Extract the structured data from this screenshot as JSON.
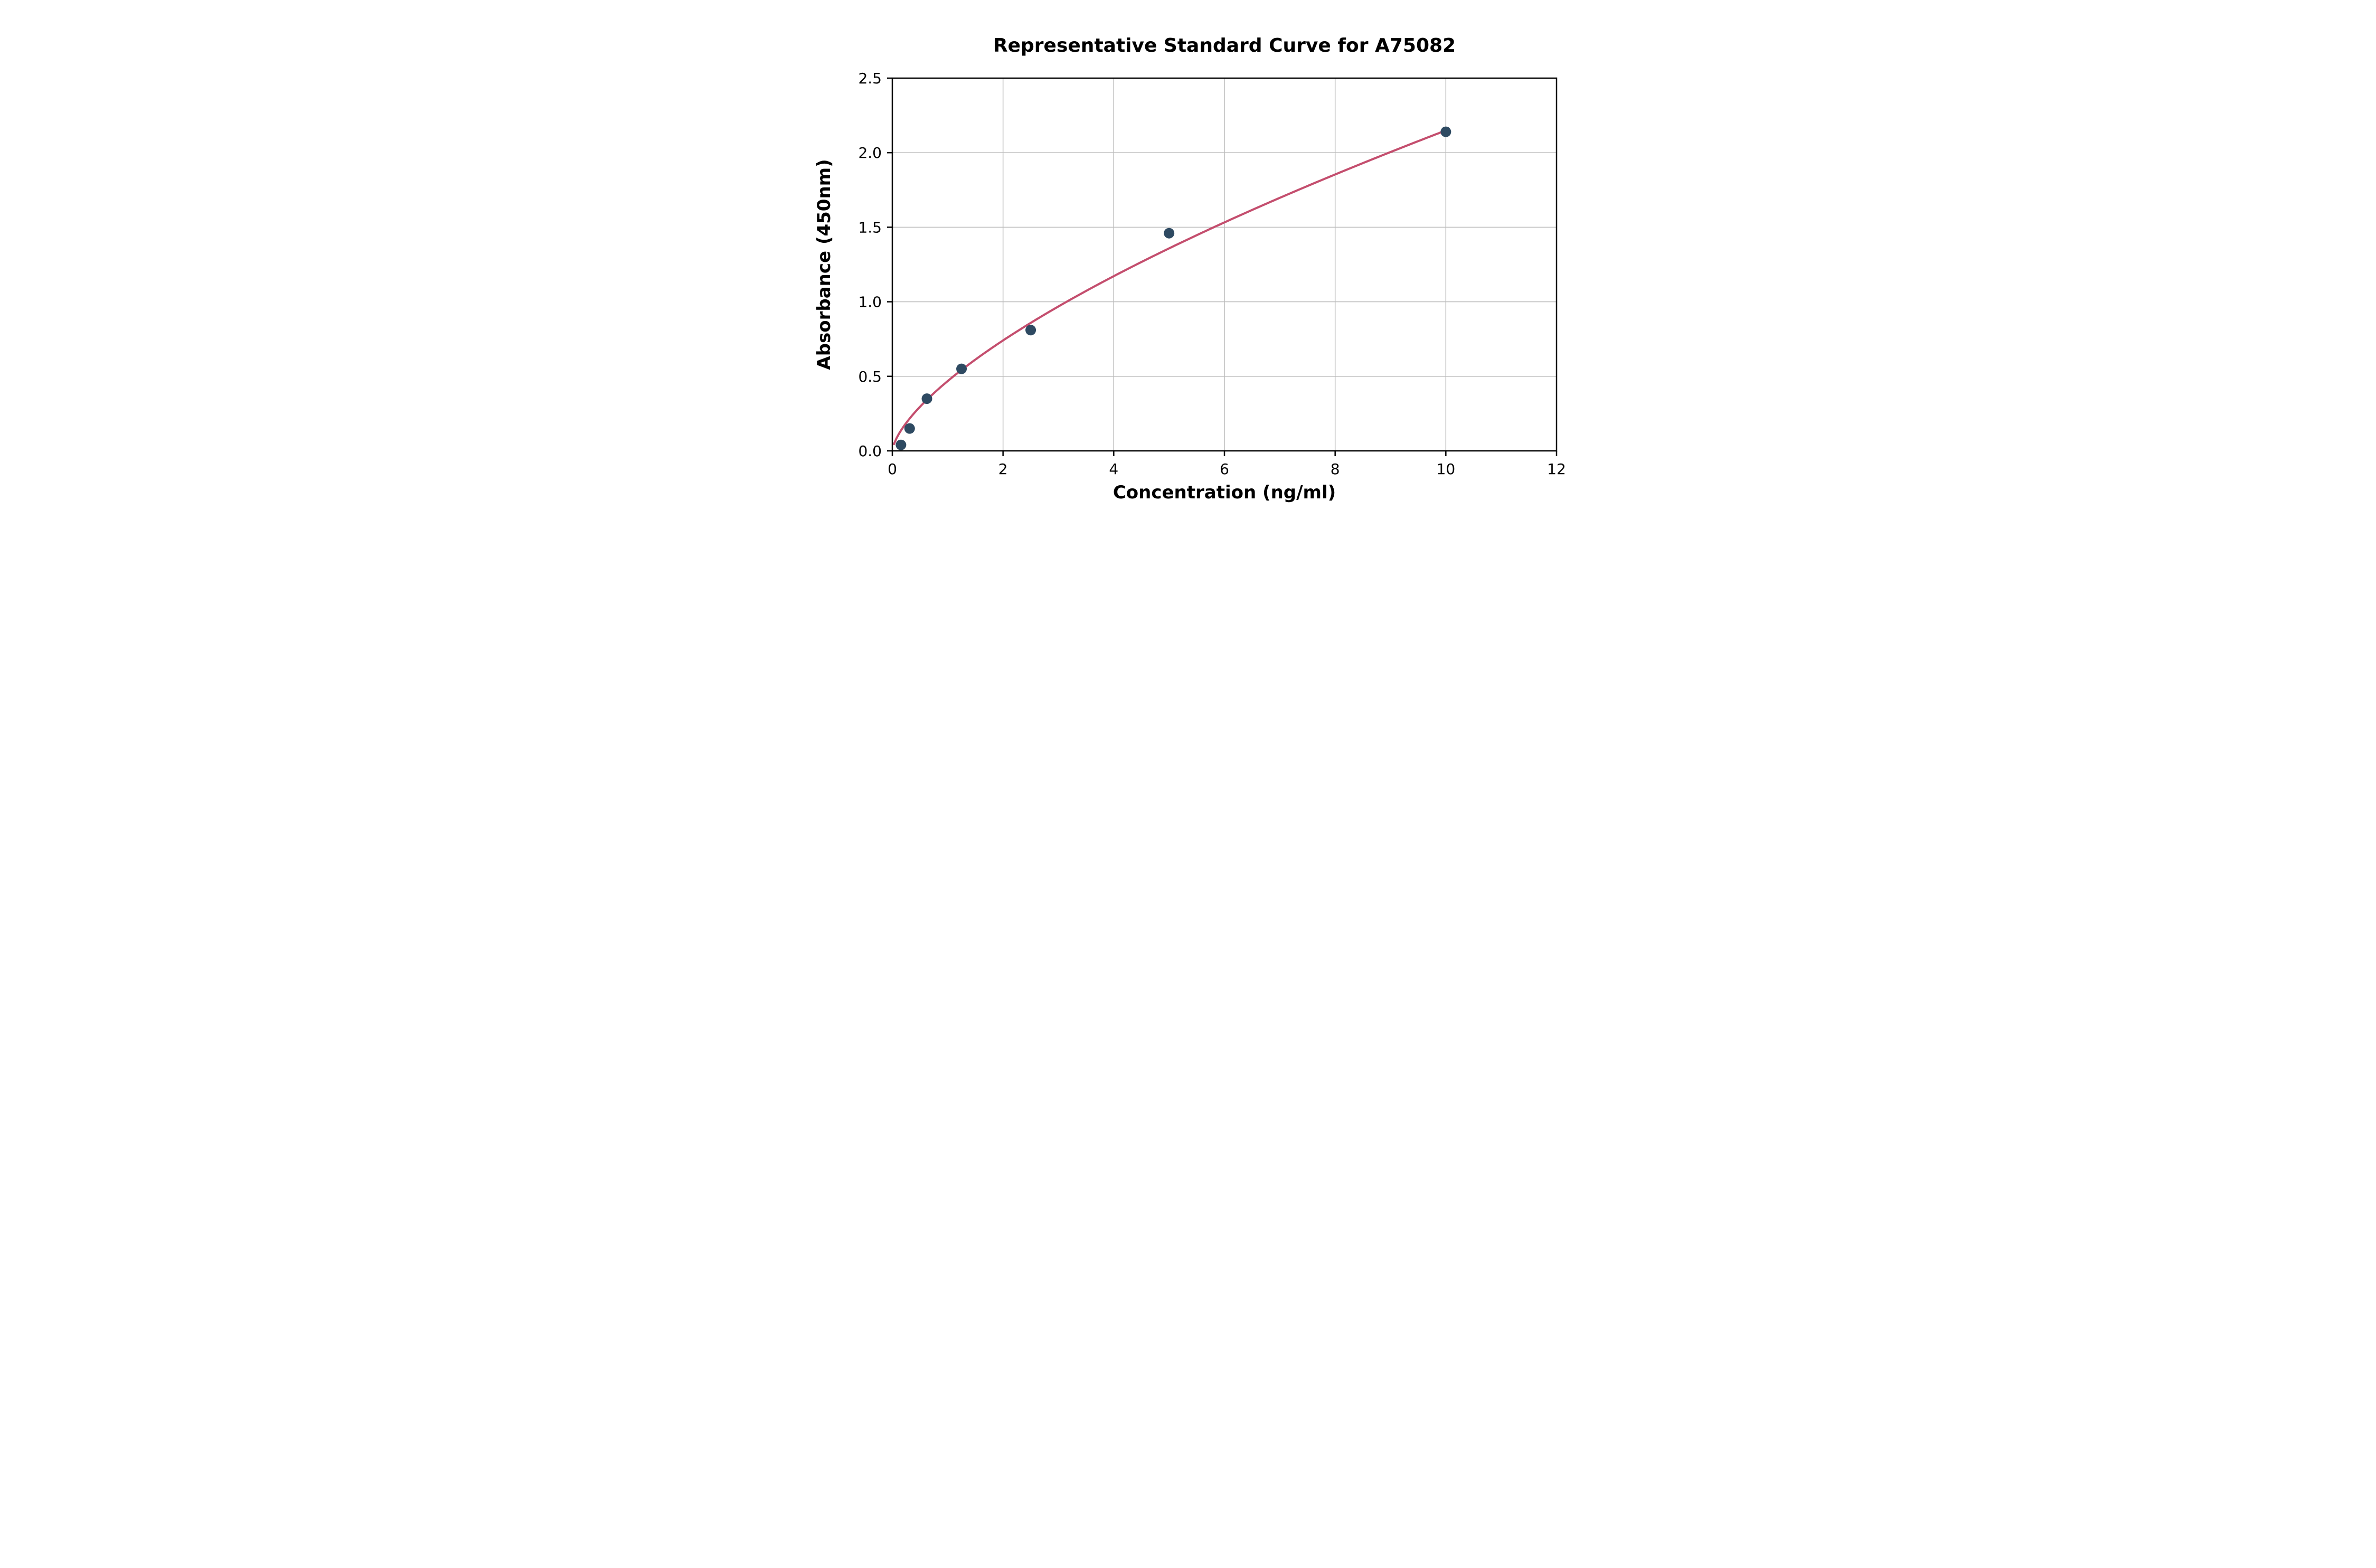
{
  "chart_data": {
    "type": "scatter",
    "title": "Representative Standard Curve for A75082",
    "xlabel": "Concentration (ng/ml)",
    "ylabel": "Absorbance (450nm)",
    "xlim": [
      0,
      12
    ],
    "ylim": [
      0,
      2.5
    ],
    "xticks": [
      0,
      2,
      4,
      6,
      8,
      10,
      12
    ],
    "xtick_labels": [
      "0",
      "2",
      "4",
      "6",
      "8",
      "10",
      "12"
    ],
    "yticks": [
      0,
      0.5,
      1.0,
      1.5,
      2.0,
      2.5
    ],
    "ytick_labels": [
      "0.0",
      "0.5",
      "1.0",
      "1.5",
      "2.0",
      "2.5"
    ],
    "grid": true,
    "legend": "none",
    "points": {
      "x": [
        0.156,
        0.313,
        0.625,
        1.25,
        2.5,
        5,
        10
      ],
      "y": [
        0.04,
        0.15,
        0.35,
        0.55,
        0.81,
        1.46,
        2.14
      ]
    },
    "fit_curve": {
      "type": "power",
      "a": 0.468,
      "b": 0.662,
      "x_start": 0.03,
      "x_end": 10
    },
    "colors": {
      "marker": "#2e4a62",
      "curve": "#c44e6e",
      "grid": "#bbbbbb",
      "axis": "#000000",
      "background": "#ffffff"
    }
  }
}
